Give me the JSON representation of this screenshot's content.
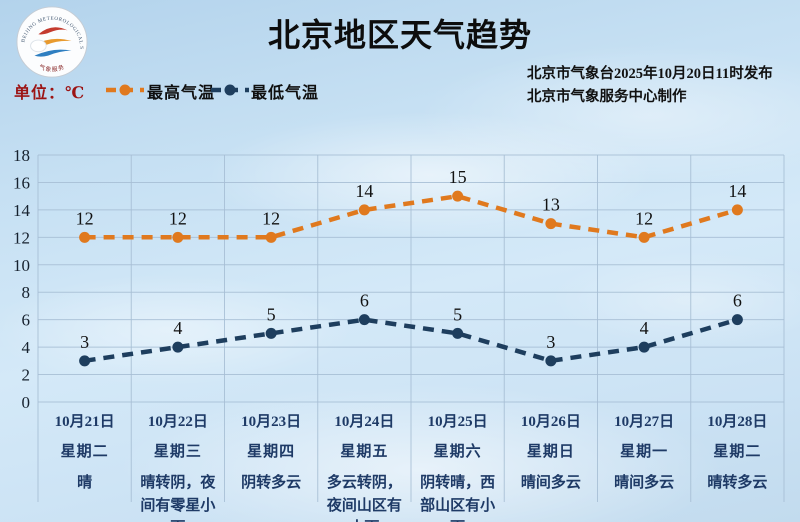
{
  "header": {
    "title": "北京地区天气趋势",
    "issue_line1": "北京市气象台2025年10月20日11时发布",
    "issue_line2": "北京市气象服务中心制作",
    "logo_ring_text": "BEIJING METEOROLOGICAL SERVICE",
    "logo_bottom_text": "气象服务"
  },
  "legend": {
    "unit_label": "单位：℃",
    "high_label": "最高气温",
    "low_label": "最低气温"
  },
  "colors": {
    "high_series": "#e0791e",
    "low_series": "#1e3e5e",
    "unit_text": "#9c1414",
    "axis_text": "#16212e",
    "day_text": "#1e3a66",
    "grid_line": "#a6bdd3",
    "title_text": "#0d0d0d",
    "value_label_text": "#121212",
    "issue_text": "#111111"
  },
  "chart_data": {
    "type": "line",
    "title": "北京地区天气趋势",
    "categories": [
      "10月21日",
      "10月22日",
      "10月23日",
      "10月24日",
      "10月25日",
      "10月26日",
      "10月27日",
      "10月28日"
    ],
    "weekdays": [
      "星期二",
      "星期三",
      "星期四",
      "星期五",
      "星期六",
      "星期日",
      "星期一",
      "星期二"
    ],
    "weather": [
      "晴",
      "晴转阴，夜间有零星小雨",
      "阴转多云",
      "多云转阴，夜间山区有小雨",
      "阴转晴，西部山区有小雨",
      "晴间多云",
      "晴间多云",
      "晴转多云"
    ],
    "series": [
      {
        "name": "最高气温",
        "values": [
          12,
          12,
          12,
          14,
          15,
          13,
          12,
          14
        ]
      },
      {
        "name": "最低气温",
        "values": [
          3,
          4,
          5,
          6,
          5,
          3,
          4,
          6
        ]
      }
    ],
    "ylim": [
      0,
      18
    ],
    "ytick_step": 2,
    "yticks": [
      0,
      2,
      4,
      6,
      8,
      10,
      12,
      14,
      16,
      18
    ],
    "unit": "℃",
    "grid": true,
    "line_style": "dashed",
    "legend_position": "top-left"
  }
}
